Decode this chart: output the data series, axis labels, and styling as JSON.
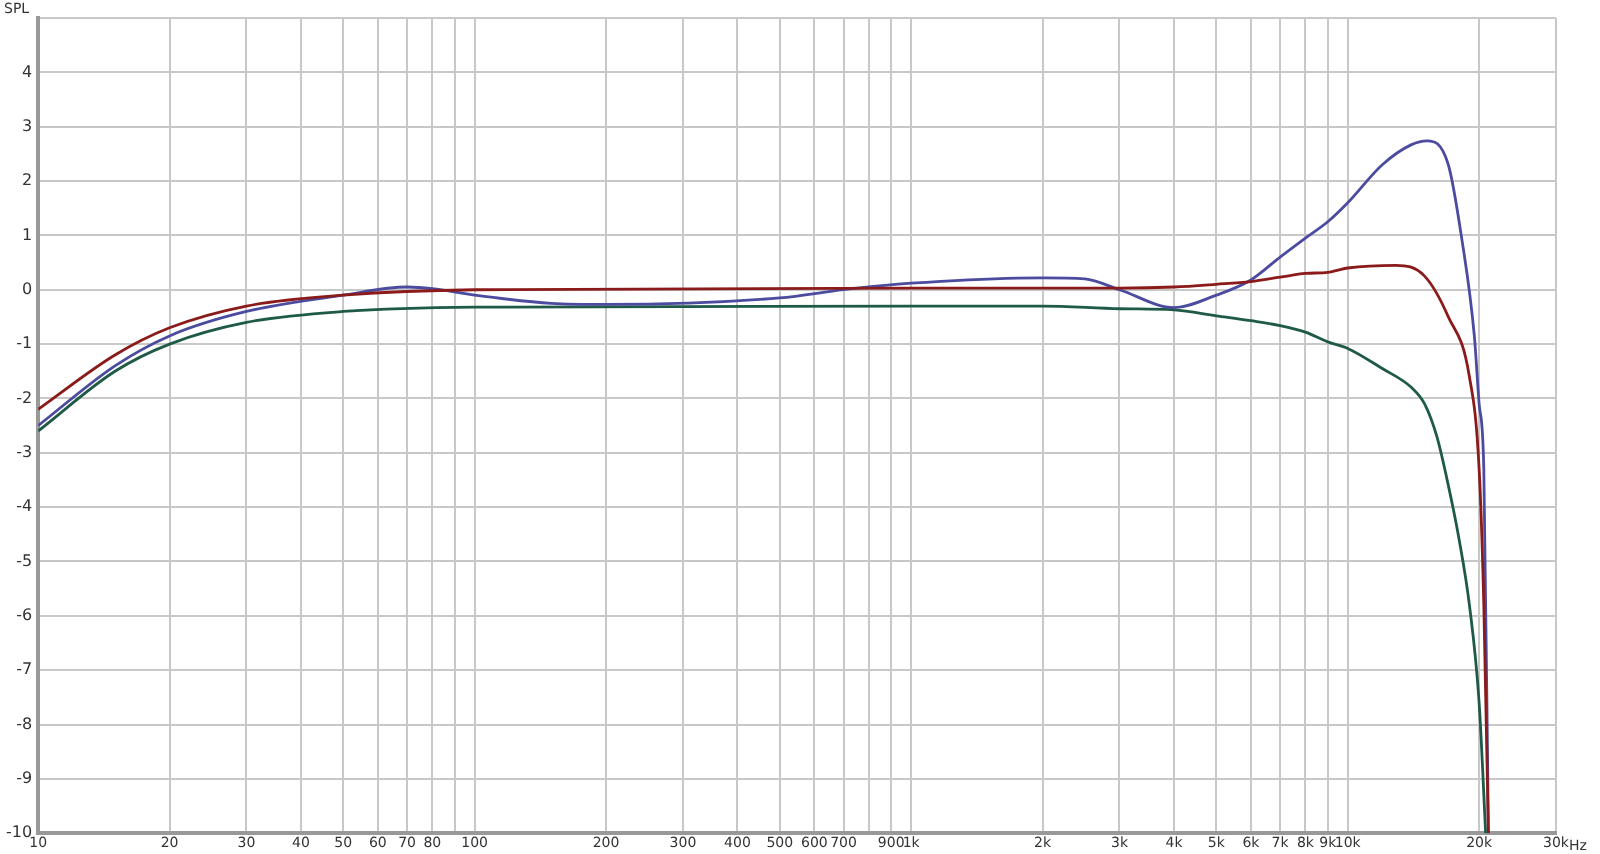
{
  "chart_data": {
    "type": "line",
    "ylabel": "SPL",
    "log": "x",
    "grid": true,
    "legend": false,
    "marker": "none",
    "line_style": "solid",
    "xlim": [
      10,
      30000
    ],
    "ylim": [
      -10,
      5
    ],
    "xticks": [
      10,
      20,
      30,
      40,
      50,
      60,
      70,
      80,
      {
        "value": 90,
        "label": null
      },
      100,
      200,
      300,
      400,
      500,
      600,
      700,
      {
        "value": 800,
        "label": null
      },
      900,
      {
        "value": 1000,
        "label": "1k"
      },
      {
        "value": 2000,
        "label": "2k"
      },
      {
        "value": 3000,
        "label": "3k"
      },
      {
        "value": 4000,
        "label": "4k"
      },
      {
        "value": 5000,
        "label": "5k"
      },
      {
        "value": 6000,
        "label": "6k"
      },
      {
        "value": 7000,
        "label": "7k"
      },
      {
        "value": 8000,
        "label": "8k"
      },
      {
        "value": 9000,
        "label": "9k"
      },
      {
        "value": 10000,
        "label": "10k"
      },
      {
        "value": 20000,
        "label": "20k"
      },
      {
        "value": 30000,
        "label": "30k"
      }
    ],
    "xlabel": "Hz",
    "yticks": [
      -10,
      -9,
      -8,
      -7,
      -6,
      -5,
      -4,
      -3,
      -2,
      -1,
      0,
      1,
      2,
      3,
      4,
      {
        "value": 5,
        "label": null
      }
    ],
    "series": [
      {
        "color": "#8b1a1a",
        "x": [
          10,
          15,
          20,
          30,
          50,
          100,
          1000,
          3000,
          4000,
          5000,
          6000,
          7000,
          8000,
          9000,
          10000,
          12900,
          15000,
          17000,
          19000,
          20000,
          20500,
          21000
        ],
        "values": [
          -2.2,
          -1.2,
          -0.7,
          -0.3,
          -0.1,
          0,
          0.03,
          0.03,
          0.05,
          0.1,
          0.15,
          0.23,
          0.3,
          0.32,
          0.4,
          0.45,
          0.25,
          -0.5,
          -1.6,
          -3.3,
          -5.8,
          -10
        ]
      },
      {
        "color": "#4b4ba0",
        "x": [
          10,
          15,
          20,
          30,
          50,
          70,
          80,
          100,
          150,
          200,
          500,
          700,
          1000,
          2000,
          2500,
          3000,
          4000,
          5000,
          6000,
          7000,
          8000,
          9000,
          10000,
          12000,
          14000,
          15200,
          17000,
          18200,
          19500,
          20000,
          20500,
          21000
        ],
        "values": [
          -2.5,
          -1.4,
          -0.85,
          -0.4,
          -0.1,
          0.05,
          0.02,
          -0.1,
          -0.25,
          -0.27,
          -0.15,
          0,
          0.12,
          0.22,
          0.2,
          0,
          -0.33,
          -0.1,
          0.18,
          0.6,
          0.95,
          1.25,
          1.6,
          2.3,
          2.67,
          2.74,
          2.3,
          1.0,
          -0.85,
          -2.1,
          -3.3,
          -10
        ]
      },
      {
        "color": "#1e5a46",
        "x": [
          10,
          15,
          20,
          30,
          50,
          100,
          1000,
          2000,
          3000,
          4000,
          5000,
          6000,
          7000,
          8000,
          9000,
          10000,
          12000,
          14000,
          15000,
          16000,
          17000,
          18000,
          19000,
          20000,
          20700
        ],
        "values": [
          -2.6,
          -1.5,
          -1.0,
          -0.6,
          -0.4,
          -0.32,
          -0.3,
          -0.3,
          -0.35,
          -0.37,
          -0.48,
          -0.57,
          -0.66,
          -0.78,
          -0.96,
          -1.08,
          -1.45,
          -1.8,
          -2.1,
          -2.7,
          -3.6,
          -4.6,
          -5.8,
          -7.6,
          -10
        ]
      }
    ]
  }
}
